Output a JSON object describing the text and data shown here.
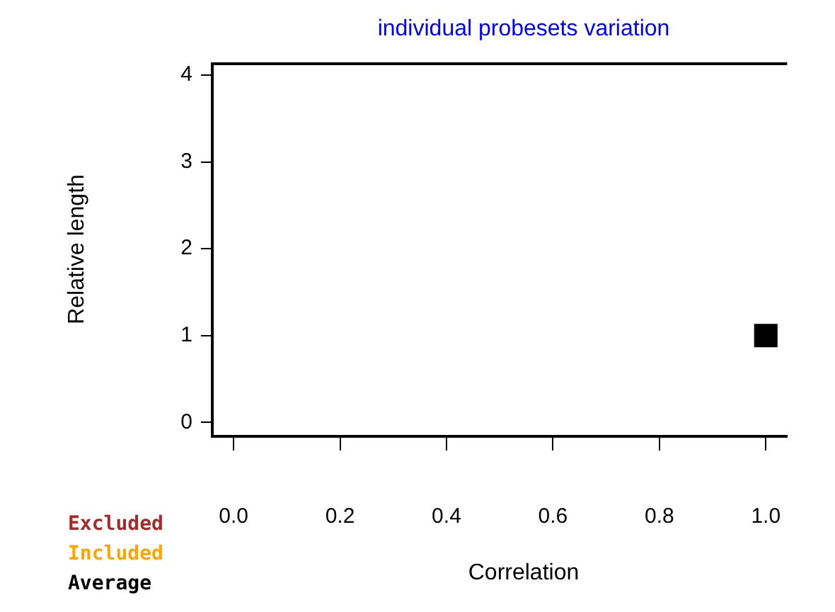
{
  "chart_data": {
    "type": "scatter",
    "title": "individual probesets   variation",
    "xlabel": "Correlation",
    "ylabel": "Relative length",
    "xlim": [
      -0.04,
      1.04
    ],
    "ylim": [
      -0.16,
      4.13
    ],
    "xticks": [
      {
        "value": 0,
        "label": "0.0"
      },
      {
        "value": 0.2,
        "label": "0.2"
      },
      {
        "value": 0.4,
        "label": "0.4"
      },
      {
        "value": 0.6,
        "label": "0.6"
      },
      {
        "value": 0.8,
        "label": "0.8"
      },
      {
        "value": 1,
        "label": "1.0"
      }
    ],
    "yticks": [
      0,
      1,
      2,
      3,
      4
    ],
    "grid": false,
    "legend": "bottom left",
    "marker": "square",
    "series": [
      {
        "name": "Excluded",
        "color": "#a52a2a"
      },
      {
        "name": "Included",
        "color": "#ffa500"
      },
      {
        "name": "Average",
        "color": "#000000",
        "x": [
          1
        ],
        "values": [
          1
        ]
      }
    ]
  }
}
